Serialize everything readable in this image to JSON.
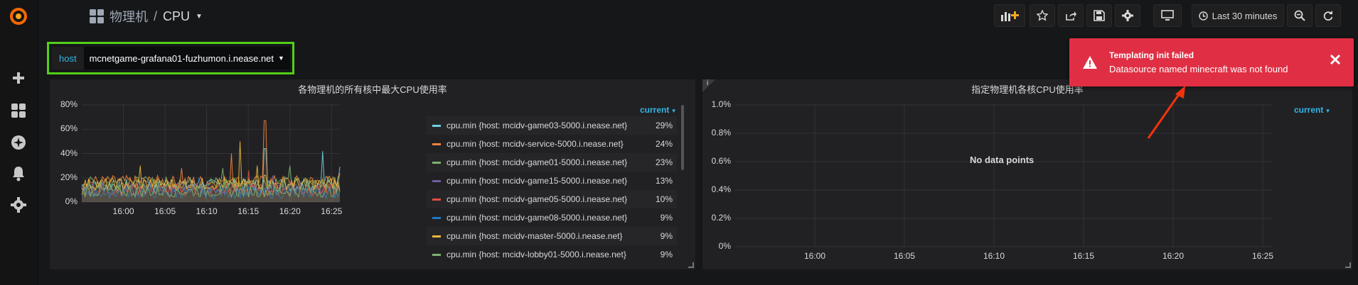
{
  "header": {
    "breadcrumb_folder": "物理机",
    "breadcrumb_sep": "/",
    "dashboard_title": "CPU",
    "time_range_label": "Last 30 minutes"
  },
  "variables": {
    "host_label": "host",
    "host_value": "mcnetgame-grafana01-fuzhumon.i.nease.net"
  },
  "panel_left": {
    "title": "各物理机的所有核中最大CPU使用率",
    "legend_header": "current",
    "y_ticks": [
      "80%",
      "60%",
      "40%",
      "20%",
      "0%"
    ],
    "x_ticks": [
      "16:00",
      "16:05",
      "16:10",
      "16:15",
      "16:20",
      "16:25"
    ],
    "legend": [
      {
        "name": "cpu.min {host: mcidv-game03-5000.i.nease.net}",
        "value": "29%",
        "color": "#6ed0e0"
      },
      {
        "name": "cpu.min {host: mcidv-service-5000.i.nease.net}",
        "value": "24%",
        "color": "#ef843c"
      },
      {
        "name": "cpu.min {host: mcidv-game01-5000.i.nease.net}",
        "value": "23%",
        "color": "#7eb26d"
      },
      {
        "name": "cpu.min {host: mcidv-game15-5000.i.nease.net}",
        "value": "13%",
        "color": "#705da0"
      },
      {
        "name": "cpu.min {host: mcidv-game05-5000.i.nease.net}",
        "value": "10%",
        "color": "#e24d42"
      },
      {
        "name": "cpu.min {host: mcidv-game08-5000.i.nease.net}",
        "value": "9%",
        "color": "#1f78c1"
      },
      {
        "name": "cpu.min {host: mcidv-master-5000.i.nease.net}",
        "value": "9%",
        "color": "#eab839"
      },
      {
        "name": "cpu.min {host: mcidv-lobby01-5000.i.nease.net}",
        "value": "9%",
        "color": "#7eb26d"
      }
    ]
  },
  "panel_right": {
    "title": "指定物理机各核CPU使用率",
    "info_icon": "i",
    "legend_header": "current",
    "no_data": "No data points",
    "y_ticks": [
      "1.0%",
      "0.8%",
      "0.6%",
      "0.4%",
      "0.2%",
      "0%"
    ],
    "x_ticks": [
      "16:00",
      "16:05",
      "16:10",
      "16:15",
      "16:20",
      "16:25"
    ]
  },
  "toast": {
    "title": "Templating init failed",
    "message": "Datasource named minecraft was not found"
  },
  "colors": {
    "accent": "#33b5e5",
    "toast_bg": "#e02f44",
    "highlight_box": "#52d017",
    "annotation_arrow": "#f2330d"
  },
  "chart_data": [
    {
      "type": "line",
      "title": "各物理机的所有核中最大CPU使用率",
      "x_range": [
        "15:55",
        "16:26"
      ],
      "x_ticks": [
        "16:00",
        "16:05",
        "16:10",
        "16:15",
        "16:20",
        "16:25"
      ],
      "ylim": [
        0,
        80
      ],
      "y_unit": "%",
      "grid": true,
      "legend_placement": "right",
      "series": [
        {
          "name": "cpu.min {host: mcidv-game03-5000.i.nease.net}",
          "current": 29,
          "baseline": 14,
          "spikes": [
            [
              "16:17",
              44
            ],
            [
              "16:24",
              42
            ]
          ]
        },
        {
          "name": "cpu.min {host: mcidv-service-5000.i.nease.net}",
          "current": 24,
          "baseline": 17,
          "spikes": [
            [
              "16:13",
              40
            ],
            [
              "16:17",
              67
            ],
            [
              "16:07",
              28
            ]
          ]
        },
        {
          "name": "cpu.min {host: mcidv-game01-5000.i.nease.net}",
          "current": 23,
          "baseline": 16,
          "spikes": [
            [
              "16:12",
              28
            ],
            [
              "16:20",
              30
            ]
          ]
        },
        {
          "name": "cpu.min {host: mcidv-game15-5000.i.nease.net}",
          "current": 13,
          "baseline": 11,
          "spikes": [
            [
              "16:18",
              22
            ]
          ]
        },
        {
          "name": "cpu.min {host: mcidv-game05-5000.i.nease.net}",
          "current": 10,
          "baseline": 10,
          "spikes": [
            [
              "16:15",
              26
            ]
          ]
        },
        {
          "name": "cpu.min {host: mcidv-game08-5000.i.nease.net}",
          "current": 9,
          "baseline": 8,
          "spikes": [
            [
              "16:09",
              20
            ]
          ]
        },
        {
          "name": "cpu.min {host: mcidv-master-5000.i.nease.net}",
          "current": 9,
          "baseline": 15,
          "spikes": [
            [
              "16:14",
              50
            ],
            [
              "16:16",
              30
            ],
            [
              "16:02",
              30
            ],
            [
              "16:17",
              22
            ]
          ]
        },
        {
          "name": "cpu.min {host: mcidv-lobby01-5000.i.nease.net}",
          "current": 9,
          "baseline": 9,
          "spikes": [
            [
              "16:22",
              18
            ]
          ]
        }
      ]
    },
    {
      "type": "line",
      "title": "指定物理机各核CPU使用率",
      "x_ticks": [
        "16:00",
        "16:05",
        "16:10",
        "16:15",
        "16:20",
        "16:25"
      ],
      "ylim": [
        0,
        1.0
      ],
      "y_unit": "%",
      "series": []
    }
  ]
}
